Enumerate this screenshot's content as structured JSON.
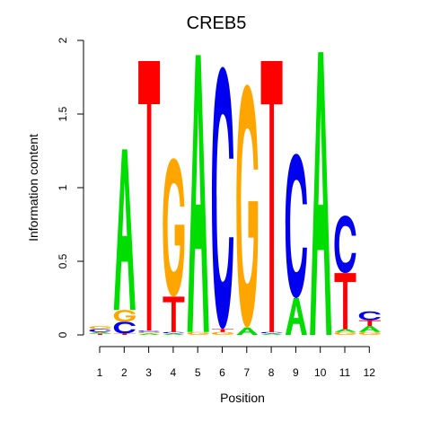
{
  "chart_data": {
    "type": "sequence-logo",
    "title": "CREB5",
    "xlabel": "Position",
    "ylabel": "Information content",
    "ylim": [
      0,
      2
    ],
    "y_ticks": [
      "0",
      "0.5",
      "1",
      "1.5",
      "2"
    ],
    "x_ticks": [
      "1",
      "2",
      "3",
      "4",
      "5",
      "6",
      "7",
      "8",
      "9",
      "10",
      "11",
      "12"
    ],
    "colors": {
      "A": "#00dd00",
      "C": "#0000ee",
      "G": "#ffa500",
      "T": "#ff0000"
    },
    "positions": [
      {
        "pos": "1",
        "letters": [
          {
            "base": "T",
            "height": 0.01
          },
          {
            "base": "A",
            "height": 0.01
          },
          {
            "base": "C",
            "height": 0.02
          },
          {
            "base": "G",
            "height": 0.02
          }
        ]
      },
      {
        "pos": "2",
        "letters": [
          {
            "base": "T",
            "height": 0.01
          },
          {
            "base": "C",
            "height": 0.08
          },
          {
            "base": "G",
            "height": 0.08
          },
          {
            "base": "A",
            "height": 1.09
          }
        ]
      },
      {
        "pos": "3",
        "letters": [
          {
            "base": "A",
            "height": 0.01
          },
          {
            "base": "G",
            "height": 0.01
          },
          {
            "base": "C",
            "height": 0.01
          },
          {
            "base": "T",
            "height": 1.83
          }
        ]
      },
      {
        "pos": "4",
        "letters": [
          {
            "base": "A",
            "height": 0.01
          },
          {
            "base": "C",
            "height": 0.01
          },
          {
            "base": "T",
            "height": 0.24
          },
          {
            "base": "G",
            "height": 0.94
          }
        ]
      },
      {
        "pos": "5",
        "letters": [
          {
            "base": "G",
            "height": 0.02
          },
          {
            "base": "A",
            "height": 1.88
          }
        ]
      },
      {
        "pos": "6",
        "letters": [
          {
            "base": "G",
            "height": 0.02
          },
          {
            "base": "T",
            "height": 0.02
          },
          {
            "base": "C",
            "height": 1.78
          }
        ]
      },
      {
        "pos": "7",
        "letters": [
          {
            "base": "A",
            "height": 0.05
          },
          {
            "base": "G",
            "height": 1.65
          }
        ]
      },
      {
        "pos": "8",
        "letters": [
          {
            "base": "A",
            "height": 0.01
          },
          {
            "base": "C",
            "height": 0.01
          },
          {
            "base": "T",
            "height": 1.84
          }
        ]
      },
      {
        "pos": "9",
        "letters": [
          {
            "base": "A",
            "height": 0.25
          },
          {
            "base": "C",
            "height": 0.98
          }
        ]
      },
      {
        "pos": "10",
        "letters": [
          {
            "base": "A",
            "height": 1.92
          }
        ]
      },
      {
        "pos": "11",
        "letters": [
          {
            "base": "G",
            "height": 0.02
          },
          {
            "base": "A",
            "height": 0.02
          },
          {
            "base": "T",
            "height": 0.38
          },
          {
            "base": "C",
            "height": 0.39
          }
        ]
      },
      {
        "pos": "12",
        "letters": [
          {
            "base": "G",
            "height": 0.02
          },
          {
            "base": "A",
            "height": 0.04
          },
          {
            "base": "T",
            "height": 0.04
          },
          {
            "base": "C",
            "height": 0.06
          }
        ]
      }
    ]
  }
}
